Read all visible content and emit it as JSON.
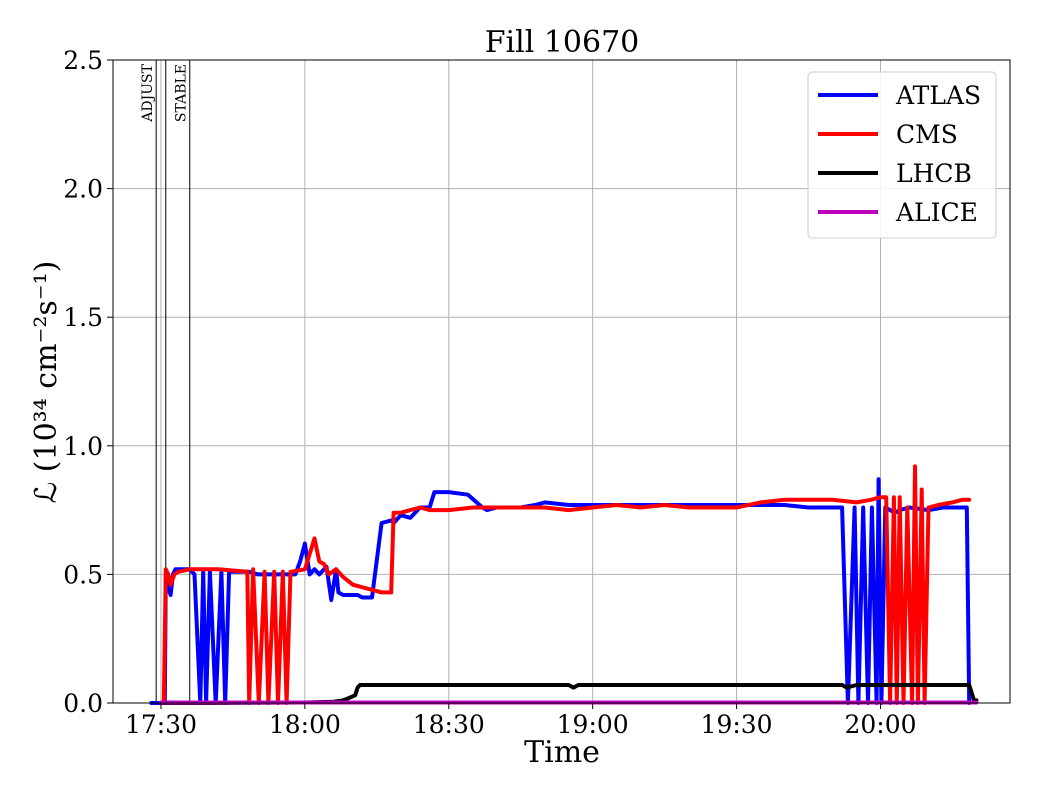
{
  "chart_data": {
    "type": "line",
    "title": "Fill 10670",
    "xlabel": "Time",
    "ylabel": "ℒ (10³⁴ cm⁻²s⁻¹)",
    "xlim": [
      "17:20",
      "20:27"
    ],
    "ylim": [
      0,
      2.5
    ],
    "grid": true,
    "legend_position": "top-right",
    "x_ticks": [
      "17:30",
      "18:00",
      "18:30",
      "19:00",
      "19:30",
      "20:00"
    ],
    "y_ticks": [
      "0.0",
      "0.5",
      "1.0",
      "1.5",
      "2.0",
      "2.5"
    ],
    "phase_markers": [
      {
        "label": "ADJUST",
        "time": "17:29:00"
      },
      {
        "label": "",
        "time": "17:31:00"
      },
      {
        "label": "STABLE",
        "time": "17:36:00"
      }
    ],
    "series": [
      {
        "name": "ATLAS",
        "color": "#0000ff",
        "x": [
          "17:28",
          "17:30:48",
          "17:31:00",
          "17:31:30",
          "17:32:00",
          "17:32:30",
          "17:33:00",
          "17:34",
          "17:36",
          "17:37",
          "17:38:12",
          "17:38:48",
          "17:39:24",
          "17:40:12",
          "17:41:24",
          "17:42:36",
          "17:43:24",
          "17:44:12",
          "17:45:12",
          "17:46:12",
          "17:47:24",
          "17:48:24",
          "17:50:12",
          "17:52",
          "17:55",
          "17:58",
          "17:59",
          "18:00",
          "18:01",
          "18:02",
          "18:03",
          "18:04:30",
          "18:05:30",
          "18:06:30",
          "18:07:00",
          "18:08:00",
          "18:09:00",
          "18:10:00",
          "18:11:00",
          "18:12:00",
          "18:14",
          "18:16",
          "18:18",
          "18:18:30",
          "18:20",
          "18:22",
          "18:24",
          "18:26",
          "18:27",
          "18:30",
          "18:34",
          "18:37",
          "18:38",
          "18:40",
          "18:45",
          "18:48",
          "18:50",
          "18:55",
          "18:58",
          "19:00",
          "19:05",
          "19:10",
          "19:15",
          "19:20",
          "19:25",
          "19:30",
          "19:40",
          "19:45",
          "19:50",
          "19:52",
          "19:53:12",
          "19:54:36",
          "19:55:24",
          "19:56:24",
          "19:57:24",
          "19:58:12",
          "19:59:12",
          "19:59:36",
          "20:00:12",
          "20:01:00",
          "20:02:00",
          "20:03:00",
          "20:04",
          "20:06",
          "20:10",
          "20:13",
          "20:18",
          "20:18:30"
        ],
        "y": [
          0,
          0,
          0.5,
          0.45,
          0.42,
          0.5,
          0.52,
          0.52,
          0.52,
          0.5,
          0,
          0.51,
          0,
          0.51,
          0,
          0.51,
          0,
          0.51,
          0.51,
          0.51,
          0.51,
          0.51,
          0.5,
          0.5,
          0.5,
          0.5,
          0.55,
          0.62,
          0.5,
          0.52,
          0.5,
          0.53,
          0.4,
          0.52,
          0.43,
          0.42,
          0.42,
          0.42,
          0.42,
          0.41,
          0.41,
          0.7,
          0.71,
          0.7,
          0.73,
          0.72,
          0.76,
          0.76,
          0.82,
          0.82,
          0.81,
          0.76,
          0.75,
          0.76,
          0.76,
          0.77,
          0.78,
          0.77,
          0.77,
          0.77,
          0.77,
          0.77,
          0.77,
          0.77,
          0.77,
          0.77,
          0.77,
          0.76,
          0.76,
          0.76,
          0,
          0.76,
          0,
          0.76,
          0,
          0.76,
          0,
          0.87,
          0,
          0.76,
          0.75,
          0.74,
          0.75,
          0.76,
          0.75,
          0.76,
          0.76,
          0
        ]
      },
      {
        "name": "CMS",
        "color": "#ff0000",
        "x": [
          "17:30:36",
          "17:31:00",
          "17:31:30",
          "17:32:00",
          "17:32:48",
          "17:33:36",
          "17:36",
          "17:42",
          "17:48",
          "17:48:24",
          "17:49:12",
          "17:50:24",
          "17:51:36",
          "17:52:24",
          "17:53:36",
          "17:54:24",
          "17:55:24",
          "17:56:12",
          "17:57:00",
          "18:00",
          "18:01",
          "18:02",
          "18:03",
          "18:04",
          "18:05",
          "18:06:30",
          "18:08",
          "18:10",
          "18:12",
          "18:14",
          "18:16",
          "18:18",
          "18:18:30",
          "18:20",
          "18:22",
          "18:24",
          "18:26",
          "18:30",
          "18:35",
          "18:40",
          "18:45",
          "18:50",
          "18:55",
          "19:00",
          "19:05",
          "19:10",
          "19:15",
          "19:20",
          "19:25",
          "19:30",
          "19:35",
          "19:40",
          "19:45",
          "19:50",
          "19:55",
          "19:58",
          "20:00",
          "20:01:12",
          "20:02:00",
          "20:02:48",
          "20:03:24",
          "20:04:00",
          "20:04:48",
          "20:05:36",
          "20:06:36",
          "20:07:12",
          "20:07:48",
          "20:08:36",
          "20:09:12",
          "20:10",
          "20:12",
          "20:15",
          "20:17",
          "20:18:30"
        ],
        "y": [
          0,
          0.52,
          0.5,
          0.46,
          0.5,
          0.51,
          0.52,
          0.52,
          0.51,
          0,
          0.52,
          0,
          0.51,
          0,
          0.51,
          0,
          0.51,
          0,
          0.51,
          0.52,
          0.58,
          0.64,
          0.55,
          0.54,
          0.5,
          0.52,
          0.49,
          0.46,
          0.45,
          0.44,
          0.43,
          0.43,
          0.74,
          0.74,
          0.75,
          0.76,
          0.75,
          0.75,
          0.76,
          0.76,
          0.76,
          0.76,
          0.75,
          0.76,
          0.77,
          0.76,
          0.77,
          0.76,
          0.76,
          0.76,
          0.78,
          0.79,
          0.79,
          0.79,
          0.78,
          0.79,
          0.8,
          0.8,
          0,
          0.8,
          0,
          0.8,
          0,
          0.76,
          0,
          0.92,
          0,
          0.83,
          0,
          0.76,
          0.77,
          0.78,
          0.79,
          0.79
        ]
      },
      {
        "name": "LHCB",
        "color": "#000000",
        "x": [
          "17:30",
          "17:40",
          "18:00",
          "18:06",
          "18:08",
          "18:10:30",
          "18:11",
          "18:11:30",
          "18:20",
          "18:40",
          "18:55",
          "18:56",
          "18:57",
          "19:00",
          "19:30",
          "19:50",
          "19:52",
          "19:53",
          "19:55",
          "20:18",
          "20:18:30",
          "20:19:30",
          "20:20"
        ],
        "y": [
          0,
          0,
          0.002,
          0.005,
          0.01,
          0.03,
          0.06,
          0.07,
          0.07,
          0.07,
          0.07,
          0.06,
          0.07,
          0.07,
          0.07,
          0.07,
          0.07,
          0.06,
          0.07,
          0.07,
          0.07,
          0.01,
          0.01
        ]
      },
      {
        "name": "ALICE",
        "color": "#bf00bf",
        "x": [
          "17:30",
          "20:20"
        ],
        "y": [
          0.002,
          0.002
        ]
      }
    ]
  }
}
